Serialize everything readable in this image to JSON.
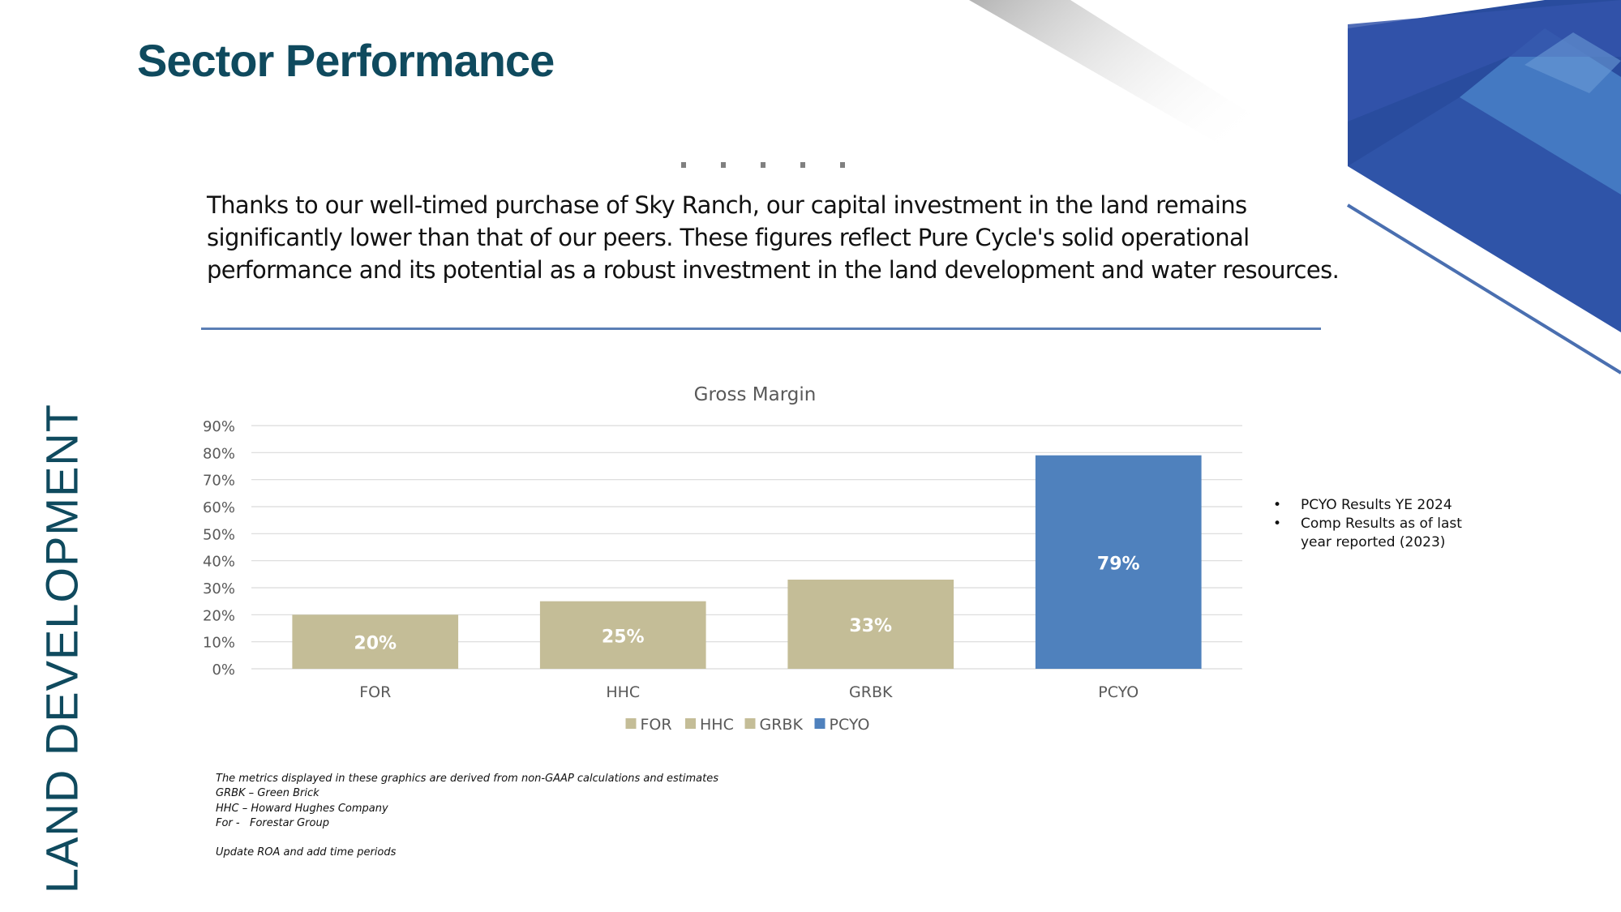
{
  "slide": {
    "title": "Sector Performance",
    "section_label": "LAND DEVELOPMENT",
    "intro_text": "Thanks to our well-timed purchase of Sky Ranch, our capital investment in the land remains significantly lower than that of our peers. These figures reflect Pure Cycle's solid operational performance and its potential as a robust investment in the land development and water resources."
  },
  "notes": [
    "PCYO Results YE 2024",
    "Comp Results as of last year reported (2023)"
  ],
  "footnotes": [
    "The metrics displayed in these graphics are derived from non-GAAP calculations and estimates",
    "GRBK – Green Brick",
    "HHC – Howard Hughes Company",
    "For -   Forestar Group",
    "",
    "Update ROA and add time periods"
  ],
  "colors": {
    "title": "#0f4a5e",
    "comp_bar": "#c4bd97",
    "pcyo_bar": "#4f81bd",
    "divider": "#5b7fb5"
  },
  "chart_data": {
    "type": "bar",
    "title": "Gross Margin",
    "xlabel": "",
    "ylabel": "",
    "categories": [
      "FOR",
      "HHC",
      "GRBK",
      "PCYO"
    ],
    "values": [
      20,
      25,
      33,
      79
    ],
    "data_labels": [
      "20%",
      "25%",
      "33%",
      "79%"
    ],
    "bar_colors": [
      "#c4bd97",
      "#c4bd97",
      "#c4bd97",
      "#4f81bd"
    ],
    "ylim": [
      0,
      90
    ],
    "yticks": [
      0,
      10,
      20,
      30,
      40,
      50,
      60,
      70,
      80,
      90
    ],
    "ytick_labels": [
      "0%",
      "10%",
      "20%",
      "30%",
      "40%",
      "50%",
      "60%",
      "70%",
      "80%",
      "90%"
    ],
    "grid": true,
    "legend": {
      "position": "bottom",
      "entries": [
        {
          "name": "FOR",
          "color": "#c4bd97"
        },
        {
          "name": "HHC",
          "color": "#c4bd97"
        },
        {
          "name": "GRBK",
          "color": "#c4bd97"
        },
        {
          "name": "PCYO",
          "color": "#4f81bd"
        }
      ]
    }
  }
}
